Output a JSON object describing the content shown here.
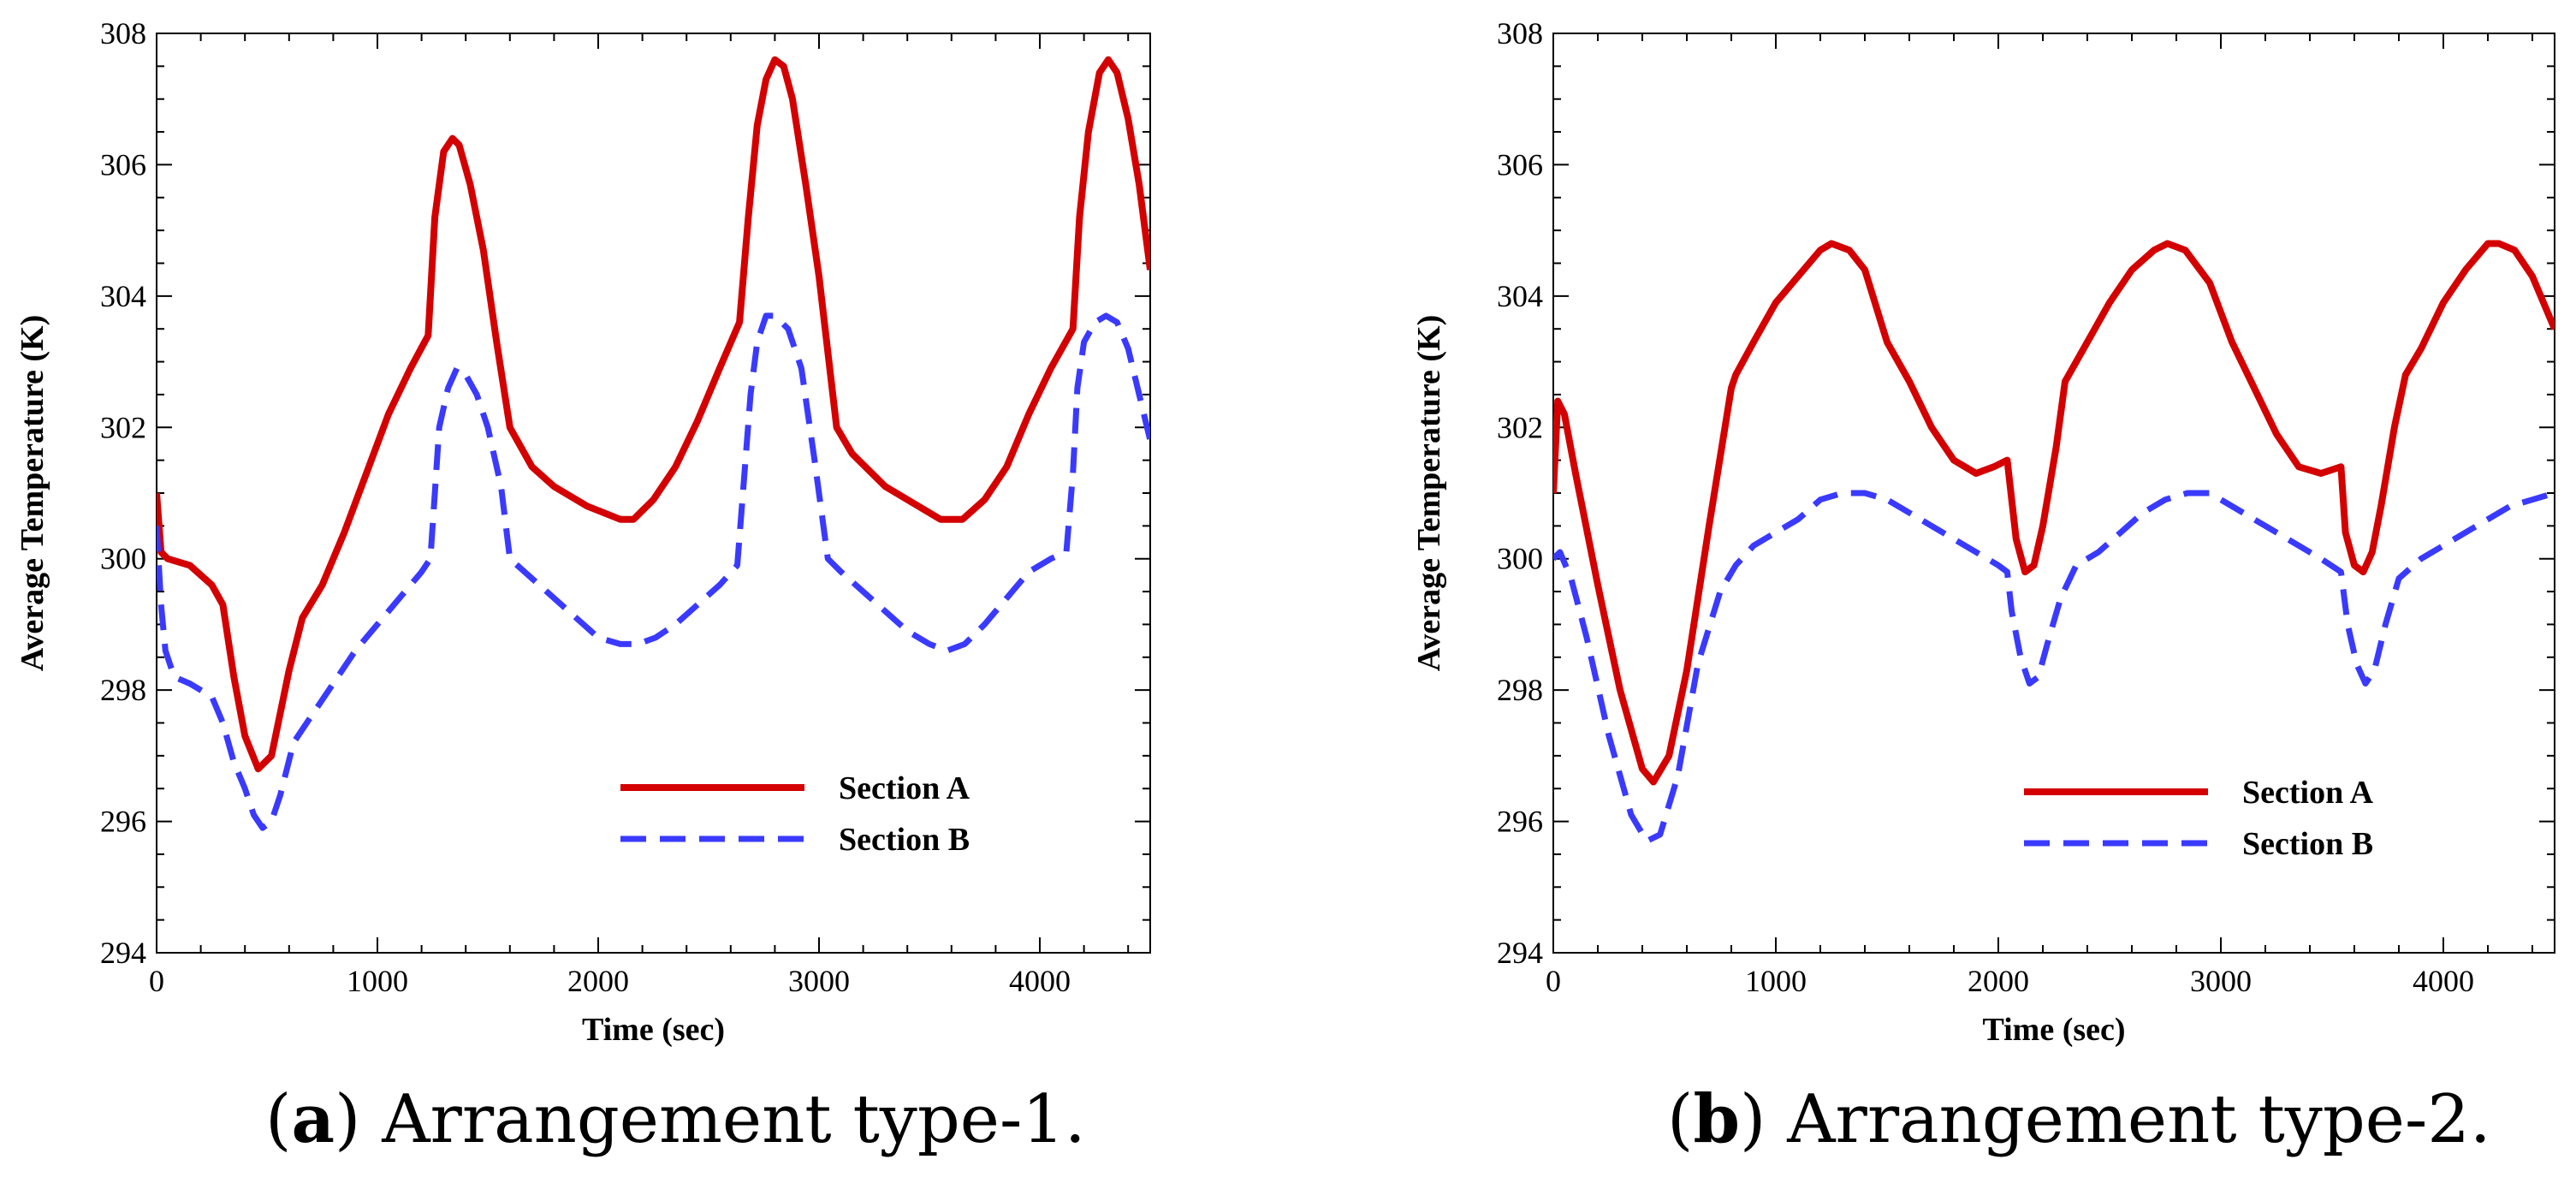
{
  "chart_data": [
    {
      "type": "line",
      "panel_label": "a",
      "caption_rest": " Arrangement type-1.",
      "xlabel": "Time (sec)",
      "ylabel": "Average Temperature (K)",
      "xlim": [
        0,
        4500
      ],
      "ylim": [
        294,
        308
      ],
      "xticks": [
        0,
        1000,
        2000,
        3000,
        4000
      ],
      "yticks": [
        294,
        296,
        298,
        300,
        302,
        304,
        306,
        308
      ],
      "legend": "right-lower",
      "series": [
        {
          "name": "Section A",
          "color": "#d40000",
          "style": "solid",
          "x": [
            0,
            20,
            50,
            150,
            250,
            300,
            350,
            400,
            460,
            520,
            600,
            660,
            750,
            850,
            950,
            1050,
            1150,
            1230,
            1260,
            1300,
            1340,
            1370,
            1420,
            1480,
            1540,
            1600,
            1700,
            1800,
            1950,
            2100,
            2160,
            2250,
            2350,
            2450,
            2550,
            2640,
            2680,
            2720,
            2760,
            2800,
            2840,
            2880,
            2940,
            3000,
            3080,
            3150,
            3300,
            3450,
            3550,
            3650,
            3750,
            3850,
            3950,
            4050,
            4150,
            4180,
            4220,
            4270,
            4310,
            4350,
            4400,
            4450,
            4500
          ],
          "values": [
            301.0,
            300.1,
            300.0,
            299.9,
            299.6,
            299.3,
            298.2,
            297.3,
            296.8,
            297.0,
            298.3,
            299.1,
            299.6,
            300.4,
            301.3,
            302.2,
            302.9,
            303.4,
            305.2,
            306.2,
            306.4,
            306.3,
            305.7,
            304.7,
            303.3,
            302.0,
            301.4,
            301.1,
            300.8,
            300.6,
            300.6,
            300.9,
            301.4,
            302.1,
            302.9,
            303.6,
            305.2,
            306.6,
            307.3,
            307.6,
            307.5,
            307.0,
            305.7,
            304.3,
            302.0,
            301.6,
            301.1,
            300.8,
            300.6,
            300.6,
            300.9,
            301.4,
            302.2,
            302.9,
            303.5,
            305.2,
            306.5,
            307.4,
            307.6,
            307.4,
            306.7,
            305.7,
            304.4
          ]
        },
        {
          "name": "Section B",
          "color": "#3a3aff",
          "style": "dashed",
          "x": [
            0,
            20,
            40,
            80,
            150,
            250,
            300,
            350,
            400,
            440,
            480,
            520,
            560,
            620,
            700,
            800,
            900,
            1000,
            1100,
            1200,
            1240,
            1260,
            1280,
            1320,
            1360,
            1400,
            1450,
            1500,
            1560,
            1600,
            1700,
            1800,
            1900,
            2000,
            2100,
            2180,
            2260,
            2350,
            2450,
            2550,
            2630,
            2660,
            2690,
            2720,
            2760,
            2800,
            2860,
            2920,
            2980,
            3040,
            3100,
            3200,
            3300,
            3400,
            3500,
            3580,
            3660,
            3750,
            3850,
            3950,
            4050,
            4120,
            4150,
            4170,
            4200,
            4250,
            4300,
            4350,
            4400,
            4450,
            4500
          ],
          "values": [
            300.5,
            299.3,
            298.6,
            298.2,
            298.1,
            297.9,
            297.5,
            296.9,
            296.5,
            296.1,
            295.9,
            296.0,
            296.4,
            297.2,
            297.6,
            298.1,
            298.6,
            299.0,
            299.4,
            299.8,
            300.0,
            301.0,
            302.0,
            302.6,
            302.9,
            302.8,
            302.5,
            302.0,
            301.1,
            300.0,
            299.7,
            299.4,
            299.1,
            298.8,
            298.7,
            298.7,
            298.8,
            299.0,
            299.3,
            299.6,
            299.9,
            301.2,
            302.5,
            303.3,
            303.7,
            303.7,
            303.5,
            302.9,
            301.5,
            300.0,
            299.8,
            299.5,
            299.2,
            298.9,
            298.7,
            298.6,
            298.7,
            299.0,
            299.4,
            299.8,
            300.0,
            300.1,
            301.3,
            302.6,
            303.3,
            303.6,
            303.7,
            303.6,
            303.2,
            302.5,
            301.8
          ]
        }
      ]
    },
    {
      "type": "line",
      "panel_label": "b",
      "caption_rest": " Arrangement type-2.",
      "xlabel": "Time (sec)",
      "ylabel": "Average Temperature (K)",
      "xlim": [
        0,
        4500
      ],
      "ylim": [
        294,
        308
      ],
      "xticks": [
        0,
        1000,
        2000,
        3000,
        4000
      ],
      "yticks": [
        294,
        296,
        298,
        300,
        302,
        304,
        306,
        308
      ],
      "legend": "right-lower",
      "series": [
        {
          "name": "Section A",
          "color": "#d40000",
          "style": "solid",
          "x": [
            0,
            20,
            50,
            100,
            200,
            300,
            400,
            450,
            520,
            600,
            700,
            800,
            820,
            900,
            1000,
            1100,
            1200,
            1250,
            1330,
            1400,
            1500,
            1600,
            1700,
            1800,
            1900,
            1980,
            2040,
            2080,
            2120,
            2160,
            2200,
            2260,
            2300,
            2400,
            2500,
            2600,
            2700,
            2760,
            2840,
            2950,
            3050,
            3150,
            3250,
            3350,
            3450,
            3540,
            3560,
            3600,
            3640,
            3680,
            3720,
            3780,
            3830,
            3900,
            4000,
            4100,
            4200,
            4250,
            4320,
            4400,
            4450,
            4500
          ],
          "values": [
            301.0,
            302.4,
            302.2,
            301.3,
            299.6,
            298.0,
            296.8,
            296.6,
            297.0,
            298.3,
            300.5,
            302.6,
            302.8,
            303.3,
            303.9,
            304.3,
            304.7,
            304.8,
            304.7,
            304.4,
            303.3,
            302.7,
            302.0,
            301.5,
            301.3,
            301.4,
            301.5,
            300.3,
            299.8,
            299.9,
            300.5,
            301.7,
            302.7,
            303.3,
            303.9,
            304.4,
            304.7,
            304.8,
            304.7,
            304.2,
            303.3,
            302.6,
            301.9,
            301.4,
            301.3,
            301.4,
            300.4,
            299.9,
            299.8,
            300.1,
            300.8,
            302.0,
            302.8,
            303.2,
            303.9,
            304.4,
            304.8,
            304.8,
            304.7,
            304.3,
            303.9,
            303.5
          ]
        },
        {
          "name": "Section B",
          "color": "#3a3aff",
          "style": "dashed",
          "x": [
            0,
            30,
            80,
            150,
            250,
            350,
            420,
            480,
            560,
            650,
            750,
            820,
            900,
            1000,
            1100,
            1200,
            1300,
            1400,
            1500,
            1600,
            1700,
            1800,
            1900,
            2000,
            2040,
            2060,
            2100,
            2140,
            2180,
            2220,
            2280,
            2350,
            2450,
            2550,
            2650,
            2750,
            2850,
            2950,
            3050,
            3150,
            3250,
            3350,
            3450,
            3540,
            3570,
            3610,
            3650,
            3690,
            3740,
            3800,
            3900,
            4000,
            4100,
            4200,
            4300,
            4400,
            4500
          ],
          "values": [
            300.0,
            300.1,
            299.7,
            298.8,
            297.3,
            296.1,
            295.7,
            295.8,
            296.7,
            298.4,
            299.5,
            299.9,
            300.2,
            300.4,
            300.6,
            300.9,
            301.0,
            301.0,
            300.9,
            300.7,
            300.5,
            300.3,
            300.1,
            299.9,
            299.8,
            299.2,
            298.5,
            298.1,
            298.2,
            298.7,
            299.4,
            299.9,
            300.1,
            300.4,
            300.7,
            300.9,
            301.0,
            301.0,
            300.8,
            300.6,
            300.4,
            300.2,
            300.0,
            299.8,
            299.0,
            298.4,
            298.1,
            298.3,
            299.0,
            299.7,
            300.0,
            300.2,
            300.4,
            300.6,
            300.8,
            300.9,
            301.0
          ]
        }
      ]
    }
  ]
}
